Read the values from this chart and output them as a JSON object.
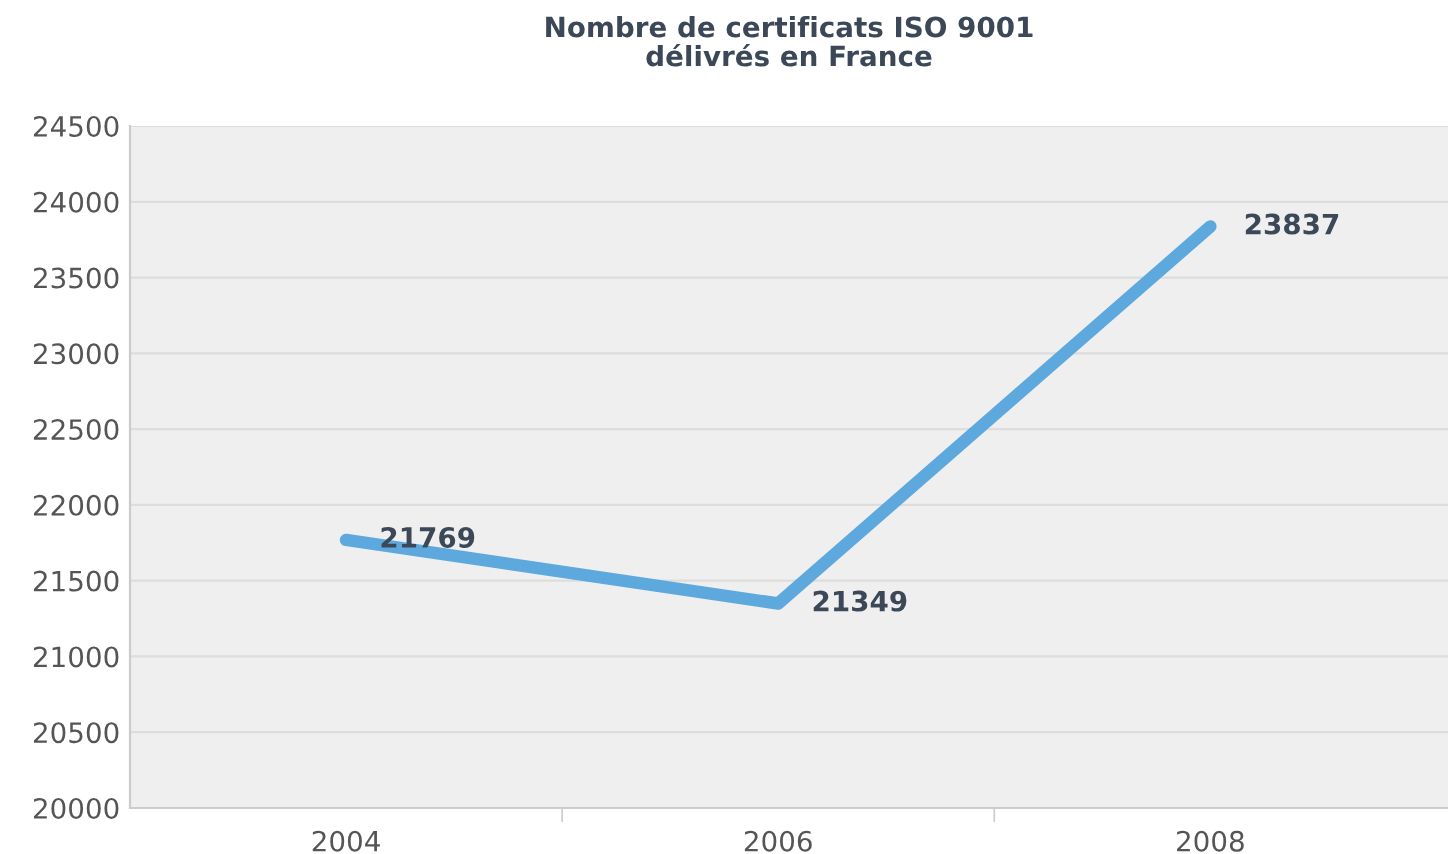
{
  "chart_data": {
    "type": "line",
    "title": "Nombre de certificats ISO 9001\ndélivrés en France",
    "categories": [
      "2004",
      "2006",
      "2008"
    ],
    "series": [
      {
        "color": "#5da9dd",
        "values": [
          21769,
          21349,
          23837
        ]
      }
    ],
    "ylim": [
      20000,
      24500
    ],
    "yticks": [
      20000,
      20500,
      21000,
      21500,
      22000,
      22500,
      23000,
      23500,
      24000,
      24500
    ],
    "grid": "y",
    "data_labels": true,
    "marker": "none",
    "line_style": "solid",
    "legend": false
  }
}
